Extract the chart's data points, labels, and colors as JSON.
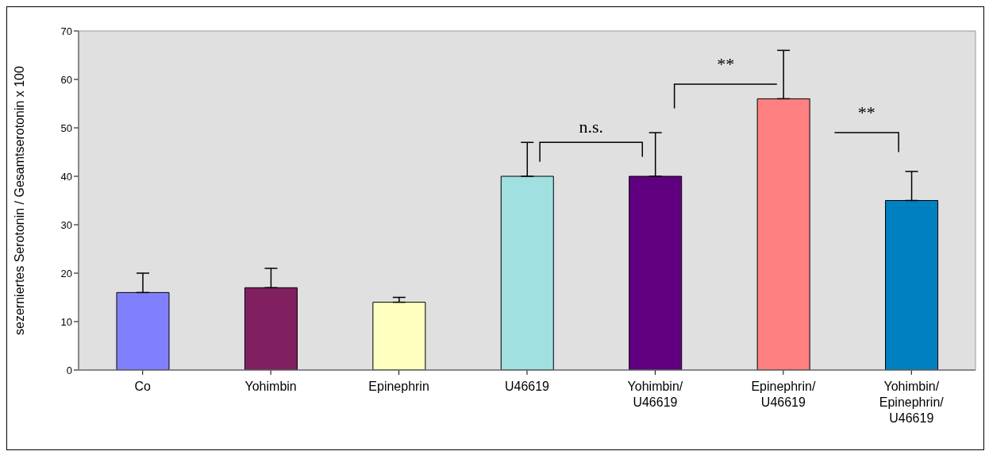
{
  "chart_data": {
    "type": "bar",
    "ylabel": "sezerniertes Serotonin / Gesamtserotonin x 100",
    "categories": [
      "Co",
      "Yohimbin",
      "Epinephrin",
      "U46619",
      "Yohimbin/U46619",
      "Epinephrin/U46619",
      "Yohimbin/Epinephrin/U46619"
    ],
    "values": [
      16,
      17,
      14,
      40,
      40,
      56,
      35
    ],
    "colors": [
      "#8080ff",
      "#802060",
      "#ffffc0",
      "#a0e0e0",
      "#600080",
      "#ff8080",
      "#0080c0"
    ],
    "errors": [
      [
        16,
        20
      ],
      [
        17,
        21
      ],
      [
        14,
        15
      ],
      [
        40,
        47
      ],
      [
        40,
        49
      ],
      [
        56,
        66
      ],
      [
        35,
        41
      ]
    ],
    "ylim": [
      0,
      70
    ],
    "yticks": [
      0,
      10,
      20,
      30,
      40,
      50,
      60,
      70
    ],
    "annotations": [
      "n.s.",
      "**",
      "**"
    ]
  }
}
